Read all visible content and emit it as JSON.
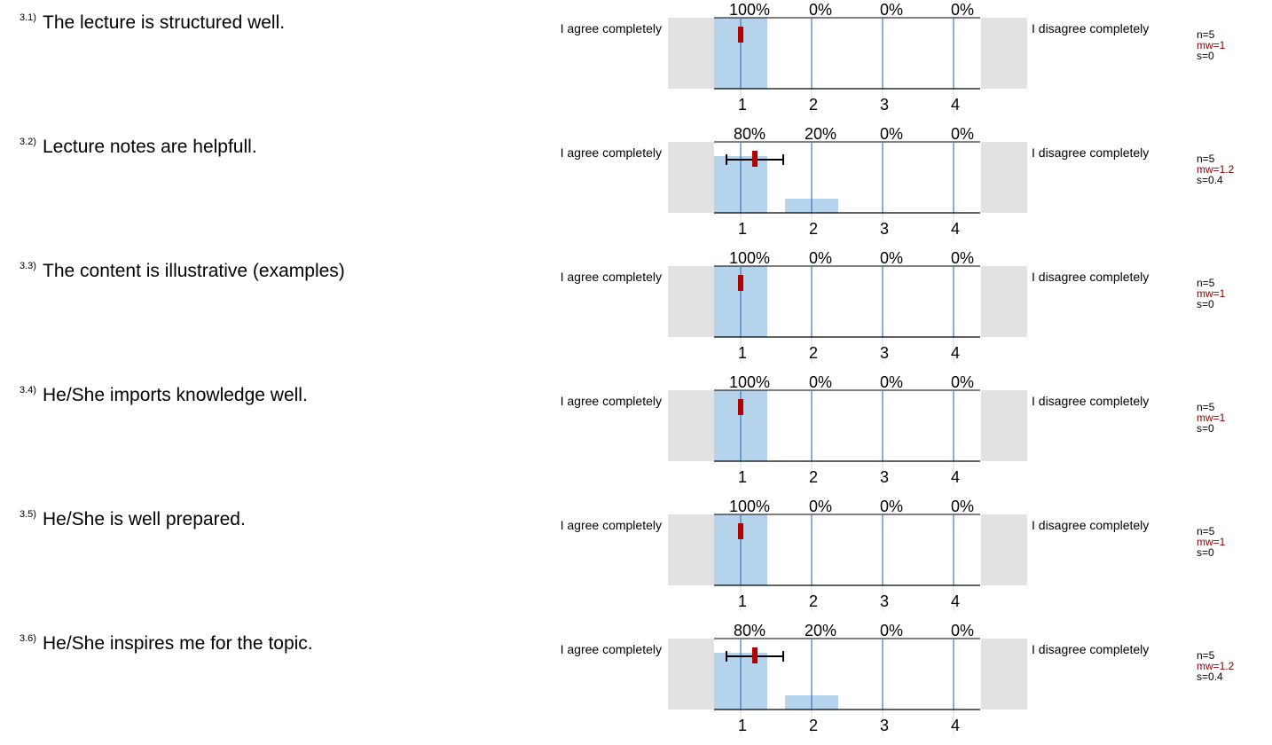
{
  "colors": {
    "bar": "#b5d4eb",
    "line": "#3a78c2",
    "mean": "#b00000",
    "panel": "#e2e2e2"
  },
  "scale": {
    "left_label": "I agree completely",
    "right_label": "I disagree completely"
  },
  "chart_data": [
    {
      "type": "bar",
      "id": "3.1)",
      "title": "The lecture is structured well.",
      "categories": [
        "1",
        "2",
        "3",
        "4"
      ],
      "values": [
        100,
        0,
        0,
        0
      ],
      "value_labels": [
        "100%",
        "0%",
        "0%",
        "0%"
      ],
      "n": "n=5",
      "mw": "mw=1",
      "s": "s=0",
      "mean": 1,
      "sd": 0
    },
    {
      "type": "bar",
      "id": "3.2)",
      "title": "Lecture notes are helpfull.",
      "categories": [
        "1",
        "2",
        "3",
        "4"
      ],
      "values": [
        80,
        20,
        0,
        0
      ],
      "value_labels": [
        "80%",
        "20%",
        "0%",
        "0%"
      ],
      "n": "n=5",
      "mw": "mw=1.2",
      "s": "s=0.4",
      "mean": 1.2,
      "sd": 0.4
    },
    {
      "type": "bar",
      "id": "3.3)",
      "title": "The content is illustrative (examples)",
      "categories": [
        "1",
        "2",
        "3",
        "4"
      ],
      "values": [
        100,
        0,
        0,
        0
      ],
      "value_labels": [
        "100%",
        "0%",
        "0%",
        "0%"
      ],
      "n": "n=5",
      "mw": "mw=1",
      "s": "s=0",
      "mean": 1,
      "sd": 0
    },
    {
      "type": "bar",
      "id": "3.4)",
      "title": "He/She imports knowledge well.",
      "categories": [
        "1",
        "2",
        "3",
        "4"
      ],
      "values": [
        100,
        0,
        0,
        0
      ],
      "value_labels": [
        "100%",
        "0%",
        "0%",
        "0%"
      ],
      "n": "n=5",
      "mw": "mw=1",
      "s": "s=0",
      "mean": 1,
      "sd": 0
    },
    {
      "type": "bar",
      "id": "3.5)",
      "title": "He/She is well prepared.",
      "categories": [
        "1",
        "2",
        "3",
        "4"
      ],
      "values": [
        100,
        0,
        0,
        0
      ],
      "value_labels": [
        "100%",
        "0%",
        "0%",
        "0%"
      ],
      "n": "n=5",
      "mw": "mw=1",
      "s": "s=0",
      "mean": 1,
      "sd": 0
    },
    {
      "type": "bar",
      "id": "3.6)",
      "title": "He/She inspires me for the topic.",
      "categories": [
        "1",
        "2",
        "3",
        "4"
      ],
      "values": [
        80,
        20,
        0,
        0
      ],
      "value_labels": [
        "80%",
        "20%",
        "0%",
        "0%"
      ],
      "n": "n=5",
      "mw": "mw=1.2",
      "s": "s=0.4",
      "mean": 1.2,
      "sd": 0.4
    }
  ]
}
